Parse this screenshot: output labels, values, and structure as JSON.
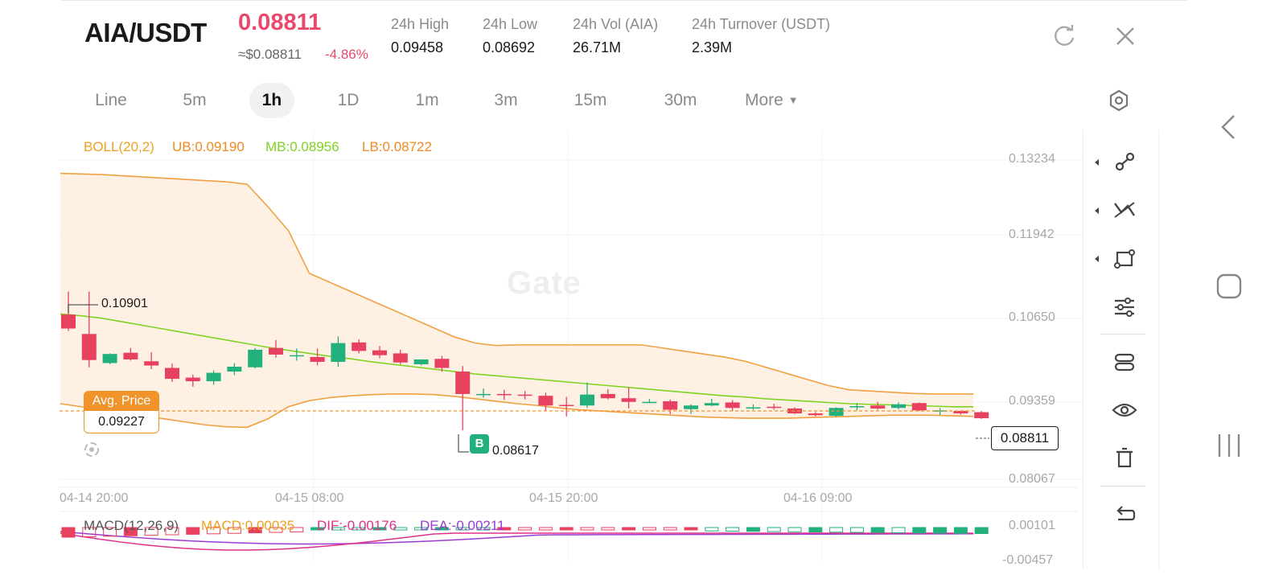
{
  "header": {
    "pair": "AIA/USDT",
    "last_price": "0.08811",
    "approx_usd": "≈$0.08811",
    "change_pct": "-4.86%",
    "stats": [
      {
        "label": "24h   High",
        "value": "0.09458"
      },
      {
        "label": "24h   Low",
        "value": "0.08692"
      },
      {
        "label": "24h   Vol (AIA)",
        "value": "26.71M"
      },
      {
        "label": "24h   Turnover (USDT)",
        "value": "2.39M"
      }
    ],
    "refresh_icon": "refresh-icon",
    "close_icon": "close-icon"
  },
  "tabs": {
    "items": [
      "Line",
      "5m",
      "1h",
      "1D",
      "1m",
      "3m",
      "15m",
      "30m",
      "More"
    ],
    "active": "1h",
    "settings_icon": "settings-hexagon-icon"
  },
  "indicators": {
    "boll_name": "BOLL(20,2)",
    "ub": "UB:0.09190",
    "mb": "MB:0.08956",
    "lb": "LB:0.08722",
    "macd_name": "MACD(12,26,9)",
    "macd": "MACD:0.00035",
    "dif": "DIF:-0.00176",
    "dea": "DEA:-0.00211"
  },
  "colors": {
    "up": "#22b07d",
    "down": "#e8405f",
    "boll_band": "#f0a040",
    "mb_line": "#7ed321",
    "accent_price": "#e84a6b"
  },
  "chart": {
    "y_ticks": [
      "0.13234",
      "0.11942",
      "0.10650",
      "0.09359",
      "0.08067"
    ],
    "x_ticks": [
      "04-14 20:00",
      "04-15 08:00",
      "04-15 20:00",
      "04-16 09:00"
    ],
    "macd_ticks": [
      "0.00101",
      "-0.00457"
    ],
    "high_label": "0.10901",
    "low_label": "0.08617",
    "avg_price_label": "Avg. Price",
    "avg_price": "0.09227",
    "current_price": "0.08811",
    "buy_marker": "B",
    "watermark": "Gate"
  },
  "chart_data": {
    "type": "candlestick",
    "y_range": [
      0.0775,
      0.1356
    ],
    "ohlc": [
      [
        0.1052,
        0.109,
        0.1029,
        0.1025
      ],
      [
        0.102,
        0.109,
        0.0977,
        0.0965
      ],
      [
        0.0972,
        0.0988,
        0.0987,
        0.097
      ],
      [
        0.0989,
        0.0997,
        0.0978,
        0.0976
      ],
      [
        0.0975,
        0.099,
        0.0968,
        0.0962
      ],
      [
        0.0964,
        0.0971,
        0.0946,
        0.0941
      ],
      [
        0.0948,
        0.0953,
        0.0942,
        0.0933
      ],
      [
        0.0942,
        0.096,
        0.0956,
        0.0936
      ],
      [
        0.0958,
        0.0972,
        0.0966,
        0.0952
      ],
      [
        0.0965,
        0.0997,
        0.0994,
        0.0963
      ],
      [
        0.0997,
        0.101,
        0.0986,
        0.0981
      ],
      [
        0.0985,
        0.0996,
        0.0985,
        0.0976
      ],
      [
        0.0982,
        0.0996,
        0.0974,
        0.0968
      ],
      [
        0.0974,
        0.1016,
        0.1005,
        0.0966
      ],
      [
        0.1006,
        0.1011,
        0.0992,
        0.0988
      ],
      [
        0.0993,
        0.1,
        0.0985,
        0.098
      ],
      [
        0.0988,
        0.0994,
        0.0973,
        0.097
      ],
      [
        0.097,
        0.0977,
        0.0978,
        0.0968
      ],
      [
        0.0979,
        0.0984,
        0.0964,
        0.0958
      ],
      [
        0.0958,
        0.0967,
        0.0921,
        0.0861
      ],
      [
        0.0921,
        0.093,
        0.0921,
        0.0915
      ],
      [
        0.0921,
        0.0928,
        0.092,
        0.0911
      ],
      [
        0.092,
        0.0926,
        0.0918,
        0.0912
      ],
      [
        0.0918,
        0.0923,
        0.0902,
        0.0893
      ],
      [
        0.0903,
        0.0916,
        0.0901,
        0.0884
      ],
      [
        0.0902,
        0.094,
        0.092,
        0.0898
      ],
      [
        0.0921,
        0.0929,
        0.0914,
        0.0912
      ],
      [
        0.0914,
        0.0932,
        0.0908,
        0.0897
      ],
      [
        0.0908,
        0.0913,
        0.0908,
        0.0906
      ],
      [
        0.0909,
        0.0912,
        0.0895,
        0.0888
      ],
      [
        0.0896,
        0.0904,
        0.0902,
        0.0888
      ],
      [
        0.0902,
        0.0913,
        0.0906,
        0.0901
      ],
      [
        0.0907,
        0.0911,
        0.0898,
        0.0893
      ],
      [
        0.0899,
        0.0904,
        0.0899,
        0.0895
      ],
      [
        0.09,
        0.0905,
        0.0898,
        0.0895
      ],
      [
        0.0897,
        0.0899,
        0.0889,
        0.0888
      ],
      [
        0.0889,
        0.0891,
        0.0886,
        0.0884
      ],
      [
        0.0885,
        0.0899,
        0.0898,
        0.0883
      ],
      [
        0.0899,
        0.0906,
        0.0901,
        0.0894
      ],
      [
        0.0902,
        0.0908,
        0.0897,
        0.0895
      ],
      [
        0.0898,
        0.0907,
        0.0904,
        0.0896
      ],
      [
        0.0906,
        0.0907,
        0.0894,
        0.0893
      ],
      [
        0.0894,
        0.0898,
        0.0894,
        0.0886
      ],
      [
        0.0893,
        0.0894,
        0.0889,
        0.0887
      ],
      [
        0.0891,
        0.0893,
        0.0881,
        0.088
      ]
    ],
    "mb": [
      0.1053,
      0.105,
      0.1046,
      0.104,
      0.1034,
      0.1028,
      0.1022,
      0.1016,
      0.101,
      0.1004,
      0.0998,
      0.0993,
      0.0988,
      0.0983,
      0.0979,
      0.0974,
      0.097,
      0.0966,
      0.0962,
      0.0958,
      0.0954,
      0.0951,
      0.0948,
      0.0945,
      0.0942,
      0.0939,
      0.0936,
      0.0933,
      0.093,
      0.0927,
      0.0924,
      0.0921,
      0.0918,
      0.0916,
      0.0913,
      0.0911,
      0.0909,
      0.0907,
      0.0905,
      0.0904,
      0.0903,
      0.0902,
      0.0901,
      0.09,
      0.09
    ],
    "ub": [
      0.1285,
      0.1284,
      0.1283,
      0.1281,
      0.1279,
      0.1277,
      0.1275,
      0.1273,
      0.1271,
      0.1267,
      0.123,
      0.119,
      0.112,
      0.1105,
      0.109,
      0.1075,
      0.106,
      0.1045,
      0.103,
      0.1015,
      0.1005,
      0.1001,
      0.1002,
      0.1002,
      0.1002,
      0.1002,
      0.1002,
      0.1002,
      0.1002,
      0.0997,
      0.0992,
      0.0987,
      0.0982,
      0.0975,
      0.0965,
      0.0955,
      0.0945,
      0.0935,
      0.0928,
      0.0926,
      0.0924,
      0.0922,
      0.0921,
      0.0921,
      0.0921
    ],
    "lb": [
      0.0905,
      0.09,
      0.0895,
      0.089,
      0.0885,
      0.088,
      0.0875,
      0.087,
      0.0867,
      0.0866,
      0.088,
      0.09,
      0.091,
      0.0915,
      0.0918,
      0.092,
      0.0921,
      0.0921,
      0.092,
      0.0917,
      0.0913,
      0.0909,
      0.0905,
      0.0902,
      0.0898,
      0.0895,
      0.0893,
      0.0891,
      0.0889,
      0.0887,
      0.0885,
      0.0883,
      0.0882,
      0.0881,
      0.0881,
      0.0881,
      0.0882,
      0.0883,
      0.0884,
      0.0885,
      0.0886,
      0.0886,
      0.0886,
      0.0885,
      0.0884
    ]
  },
  "toolbar": {
    "icons": [
      "trendline-icon",
      "multi-line-icon",
      "shape-icon",
      "indicator-settings-icon",
      "layers-icon",
      "eye-icon",
      "trash-icon",
      "undo-icon"
    ]
  },
  "system": {
    "icons": [
      "back-chevron-icon",
      "home-square-icon",
      "recents-icon"
    ]
  }
}
